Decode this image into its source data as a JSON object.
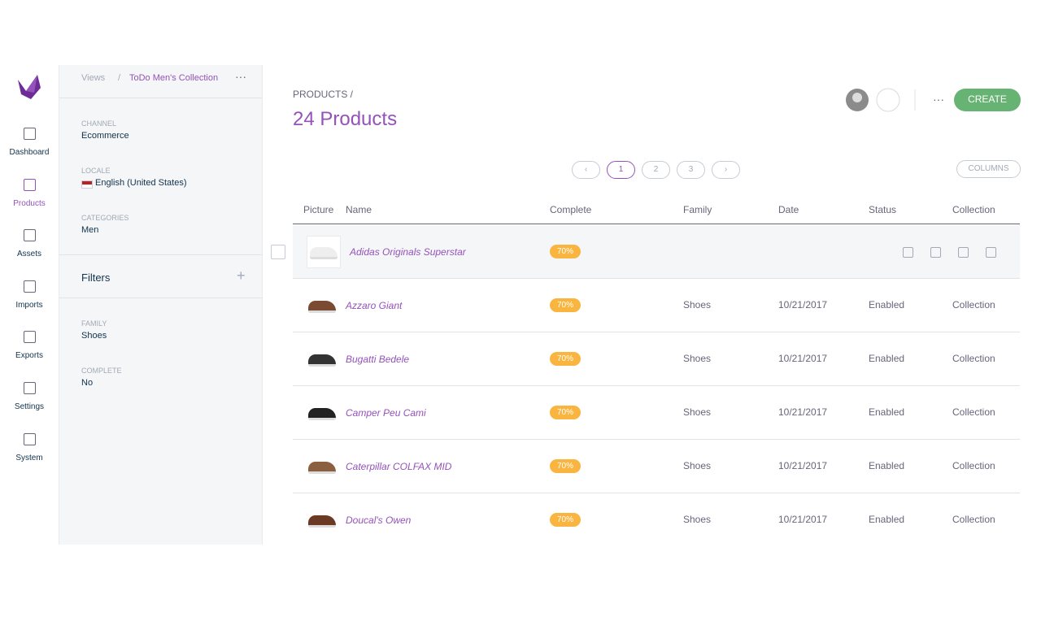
{
  "nav": {
    "items": [
      "Dashboard",
      "Products",
      "Assets",
      "Imports",
      "Exports",
      "Settings",
      "System"
    ]
  },
  "sidebar": {
    "views": "Views",
    "separator": "/",
    "view_name": "ToDo Men's Collection",
    "context": [
      {
        "label": "CHANNEL",
        "value": "Ecommerce"
      },
      {
        "label": "LOCALE",
        "value": "English (United States)"
      },
      {
        "label": "CATEGORIES",
        "value": "Men"
      }
    ],
    "filters_title": "Filters",
    "filters": [
      {
        "label": "FAMILY",
        "value": "Shoes"
      },
      {
        "label": "COMPLETE",
        "value": "No"
      }
    ]
  },
  "header": {
    "breadcrumb": "PRODUCTS /",
    "title": "24 Products",
    "create": "CREATE",
    "columns": "COLUMNS",
    "pages": [
      1,
      2,
      3
    ]
  },
  "table": {
    "columns": [
      "Picture",
      "Name",
      "Complete",
      "Family",
      "Date",
      "Status",
      "Collection"
    ],
    "rows": [
      {
        "name": "Adidas Originals Superstar",
        "complete": "70%"
      },
      {
        "name": "Azzaro Giant",
        "complete": "70%",
        "family": "Shoes",
        "date": "10/21/2017",
        "status": "Enabled",
        "collection": "Collection"
      },
      {
        "name": "Bugatti Bedele",
        "complete": "70%",
        "family": "Shoes",
        "date": "10/21/2017",
        "status": "Enabled",
        "collection": "Collection"
      },
      {
        "name": "Camper Peu Cami",
        "complete": "70%",
        "family": "Shoes",
        "date": "10/21/2017",
        "status": "Enabled",
        "collection": "Collection"
      },
      {
        "name": "Caterpillar COLFAX MID",
        "complete": "70%",
        "family": "Shoes",
        "date": "10/21/2017",
        "status": "Enabled",
        "collection": "Collection"
      },
      {
        "name": "Doucal's Owen",
        "complete": "70%",
        "family": "Shoes",
        "date": "10/21/2017",
        "status": "Enabled",
        "collection": "Collection"
      }
    ]
  }
}
